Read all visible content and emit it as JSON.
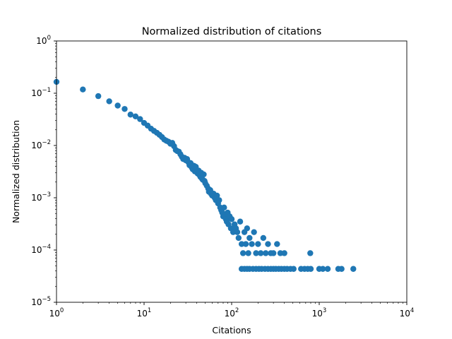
{
  "chart_data": {
    "type": "scatter",
    "title": "Normalized distribution of citations",
    "xlabel": "Citations",
    "ylabel": "Normalized distribution",
    "xscale": "log",
    "yscale": "log",
    "xlim": [
      1,
      10000
    ],
    "ylim": [
      1e-05,
      1
    ],
    "grid": false,
    "marker_color": "#1f77b4",
    "x_ticks": [
      {
        "value": 1,
        "base": "10",
        "exp": "0"
      },
      {
        "value": 10,
        "base": "10",
        "exp": "1"
      },
      {
        "value": 100,
        "base": "10",
        "exp": "2"
      },
      {
        "value": 1000,
        "base": "10",
        "exp": "3"
      },
      {
        "value": 10000,
        "base": "10",
        "exp": "4"
      }
    ],
    "y_ticks": [
      {
        "value": 1e-05,
        "base": "10",
        "exp": "−5"
      },
      {
        "value": 0.0001,
        "base": "10",
        "exp": "−4"
      },
      {
        "value": 0.001,
        "base": "10",
        "exp": "−3"
      },
      {
        "value": 0.01,
        "base": "10",
        "exp": "−2"
      },
      {
        "value": 0.1,
        "base": "10",
        "exp": "−1"
      },
      {
        "value": 1,
        "base": "10",
        "exp": "0"
      }
    ],
    "points": [
      [
        1,
        0.165
      ],
      [
        2,
        0.118
      ],
      [
        3,
        0.088
      ],
      [
        4,
        0.07
      ],
      [
        5,
        0.058
      ],
      [
        6,
        0.05
      ],
      [
        7,
        0.039
      ],
      [
        8,
        0.036
      ],
      [
        9,
        0.032
      ],
      [
        10,
        0.027
      ],
      [
        11,
        0.024
      ],
      [
        12,
        0.021
      ],
      [
        13,
        0.019
      ],
      [
        14,
        0.0175
      ],
      [
        15,
        0.016
      ],
      [
        16,
        0.0145
      ],
      [
        17,
        0.013
      ],
      [
        18,
        0.0123
      ],
      [
        19,
        0.0118
      ],
      [
        20,
        0.0108
      ],
      [
        21,
        0.0112
      ],
      [
        22,
        0.0097
      ],
      [
        23,
        0.0082
      ],
      [
        24,
        0.0078
      ],
      [
        25,
        0.0076
      ],
      [
        26,
        0.0068
      ],
      [
        27,
        0.0061
      ],
      [
        28,
        0.0055
      ],
      [
        29,
        0.0058
      ],
      [
        30,
        0.0052
      ],
      [
        31,
        0.0055
      ],
      [
        32,
        0.0048
      ],
      [
        33,
        0.0042
      ],
      [
        34,
        0.0046
      ],
      [
        35,
        0.0038
      ],
      [
        36,
        0.0035
      ],
      [
        37,
        0.0041
      ],
      [
        38,
        0.0032
      ],
      [
        39,
        0.0039
      ],
      [
        40,
        0.0031
      ],
      [
        41,
        0.0029
      ],
      [
        42,
        0.0033
      ],
      [
        43,
        0.0027
      ],
      [
        44,
        0.0025
      ],
      [
        45,
        0.003
      ],
      [
        46,
        0.0023
      ],
      [
        47,
        0.0022
      ],
      [
        48,
        0.0028
      ],
      [
        49,
        0.0021
      ],
      [
        50,
        0.0019
      ],
      [
        52,
        0.0017
      ],
      [
        54,
        0.0015
      ],
      [
        55,
        0.0013
      ],
      [
        57,
        0.0014
      ],
      [
        58,
        0.0012
      ],
      [
        60,
        0.0011
      ],
      [
        62,
        0.0012
      ],
      [
        64,
        0.001
      ],
      [
        66,
        0.0009
      ],
      [
        68,
        0.0011
      ],
      [
        70,
        0.00078
      ],
      [
        72,
        0.0009
      ],
      [
        74,
        0.00065
      ],
      [
        76,
        0.00058
      ],
      [
        78,
        0.00052
      ],
      [
        80,
        0.00044
      ],
      [
        82,
        0.00065
      ],
      [
        84,
        0.00048
      ],
      [
        86,
        0.00039
      ],
      [
        88,
        0.00035
      ],
      [
        90,
        0.00052
      ],
      [
        92,
        0.00031
      ],
      [
        95,
        0.00044
      ],
      [
        98,
        0.00026
      ],
      [
        100,
        0.00039
      ],
      [
        104,
        0.00022
      ],
      [
        108,
        0.00031
      ],
      [
        112,
        0.00026
      ],
      [
        116,
        0.00022
      ],
      [
        120,
        0.00017
      ],
      [
        125,
        0.00035
      ],
      [
        130,
        0.00013
      ],
      [
        135,
        8.7e-05
      ],
      [
        140,
        0.00022
      ],
      [
        145,
        0.00013
      ],
      [
        150,
        0.00026
      ],
      [
        155,
        8.7e-05
      ],
      [
        160,
        0.00017
      ],
      [
        170,
        0.00013
      ],
      [
        180,
        0.00022
      ],
      [
        190,
        8.7e-05
      ],
      [
        200,
        0.00013
      ],
      [
        215,
        8.7e-05
      ],
      [
        230,
        0.00017
      ],
      [
        245,
        8.7e-05
      ],
      [
        260,
        0.00013
      ],
      [
        280,
        8.7e-05
      ],
      [
        300,
        8.7e-05
      ],
      [
        330,
        0.00013
      ],
      [
        360,
        8.7e-05
      ],
      [
        400,
        8.7e-05
      ],
      [
        790,
        8.7e-05
      ],
      [
        130,
        4.35e-05
      ],
      [
        140,
        4.35e-05
      ],
      [
        150,
        4.35e-05
      ],
      [
        160,
        4.35e-05
      ],
      [
        175,
        4.35e-05
      ],
      [
        190,
        4.35e-05
      ],
      [
        205,
        4.35e-05
      ],
      [
        220,
        4.35e-05
      ],
      [
        240,
        4.35e-05
      ],
      [
        260,
        4.35e-05
      ],
      [
        280,
        4.35e-05
      ],
      [
        300,
        4.35e-05
      ],
      [
        320,
        4.35e-05
      ],
      [
        345,
        4.35e-05
      ],
      [
        370,
        4.35e-05
      ],
      [
        400,
        4.35e-05
      ],
      [
        430,
        4.35e-05
      ],
      [
        470,
        4.35e-05
      ],
      [
        510,
        4.35e-05
      ],
      [
        620,
        4.35e-05
      ],
      [
        680,
        4.35e-05
      ],
      [
        740,
        4.35e-05
      ],
      [
        800,
        4.35e-05
      ],
      [
        1000,
        4.35e-05
      ],
      [
        1100,
        4.35e-05
      ],
      [
        1250,
        4.35e-05
      ],
      [
        1650,
        4.35e-05
      ],
      [
        1800,
        4.35e-05
      ],
      [
        2450,
        4.35e-05
      ]
    ]
  }
}
